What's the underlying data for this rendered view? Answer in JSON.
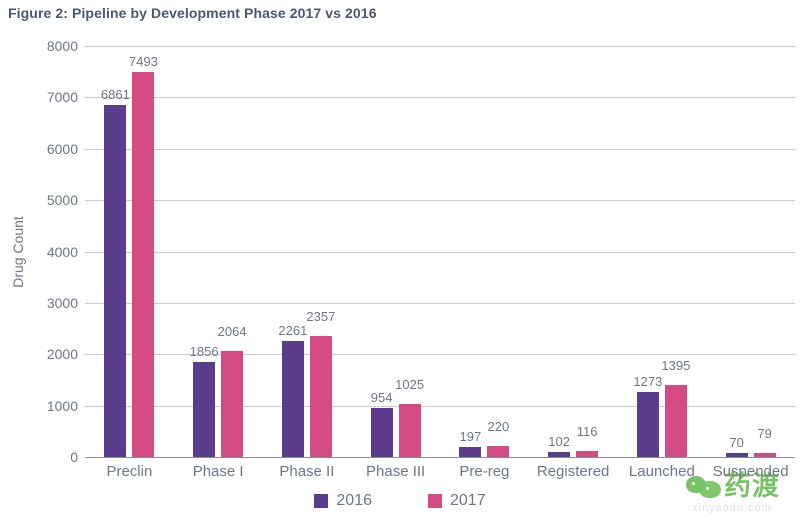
{
  "title": "Figure 2: Pipeline by Development Phase 2017 vs 2016",
  "chart_data": {
    "type": "bar",
    "categories": [
      "Preclin",
      "Phase I",
      "Phase II",
      "Phase III",
      "Pre-reg",
      "Registered",
      "Launched",
      "Suspended"
    ],
    "series": [
      {
        "name": "2016",
        "color": "#5a3b8c",
        "values": [
          6861,
          1856,
          2261,
          954,
          197,
          102,
          1273,
          70
        ]
      },
      {
        "name": "2017",
        "color": "#d34b82",
        "values": [
          7493,
          2064,
          2357,
          1025,
          220,
          116,
          1395,
          79
        ]
      }
    ],
    "title": "Figure 2: Pipeline by Development Phase 2017 vs 2016",
    "xlabel": "",
    "ylabel": "Drug Count",
    "ylim": [
      0,
      8000
    ],
    "ytick_step": 1000,
    "grid": true,
    "legend_position": "bottom",
    "value_labels": true
  },
  "colors": {
    "series_2016": "#5a3b8c",
    "series_2017": "#d34b82",
    "title_text": "#4d5771",
    "axis_text": "#6e7787",
    "gridline": "#c8cbd2",
    "watermark_green": "#69bd55"
  },
  "watermark": {
    "brand": "药渡",
    "domain": "xinyaodu.com"
  }
}
